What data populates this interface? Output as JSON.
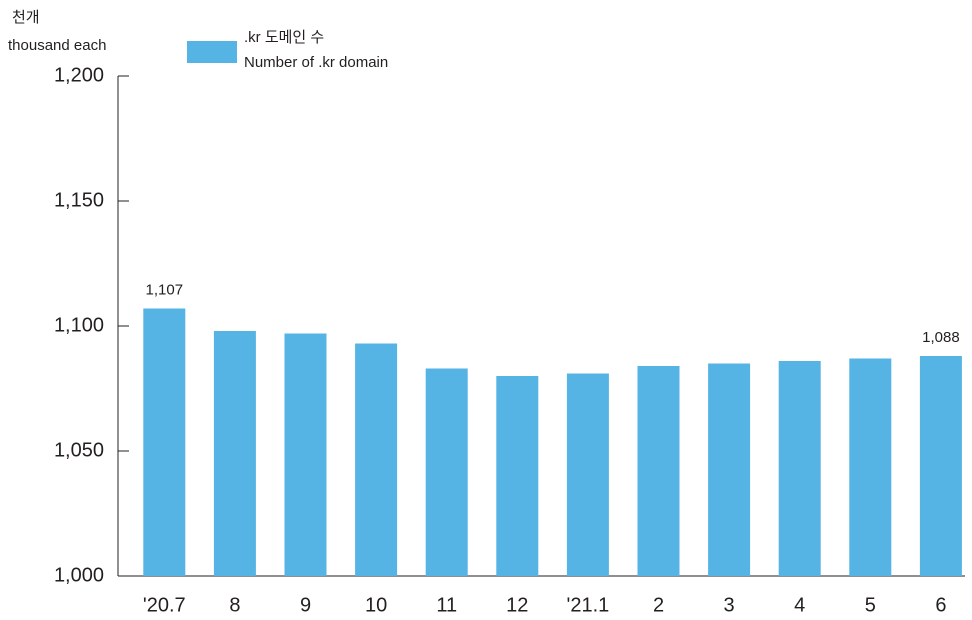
{
  "chart_data": {
    "type": "bar",
    "y_label": [
      "천개",
      "thousand each"
    ],
    "legend_labels": [
      ".kr 도메인 수",
      "Number of .kr domain"
    ],
    "categories": [
      "'20.7",
      "8",
      "9",
      "10",
      "11",
      "12",
      "'21.1",
      "2",
      "3",
      "4",
      "5",
      "6"
    ],
    "values": [
      1107,
      1098,
      1097,
      1093,
      1083,
      1080,
      1081,
      1084,
      1085,
      1086,
      1087,
      1088
    ],
    "value_labels": [
      "1,107",
      null,
      null,
      null,
      null,
      null,
      null,
      null,
      null,
      null,
      null,
      "1,088"
    ],
    "color": "#55b4e4",
    "ylim": [
      1000,
      1200
    ],
    "yticks": [
      {
        "value": 1000,
        "label": "1,000"
      },
      {
        "value": 1050,
        "label": "1,050"
      },
      {
        "value": 1100,
        "label": "1,100"
      },
      {
        "value": 1150,
        "label": "1,150"
      },
      {
        "value": 1200,
        "label": "1,200"
      }
    ],
    "grid": false
  }
}
